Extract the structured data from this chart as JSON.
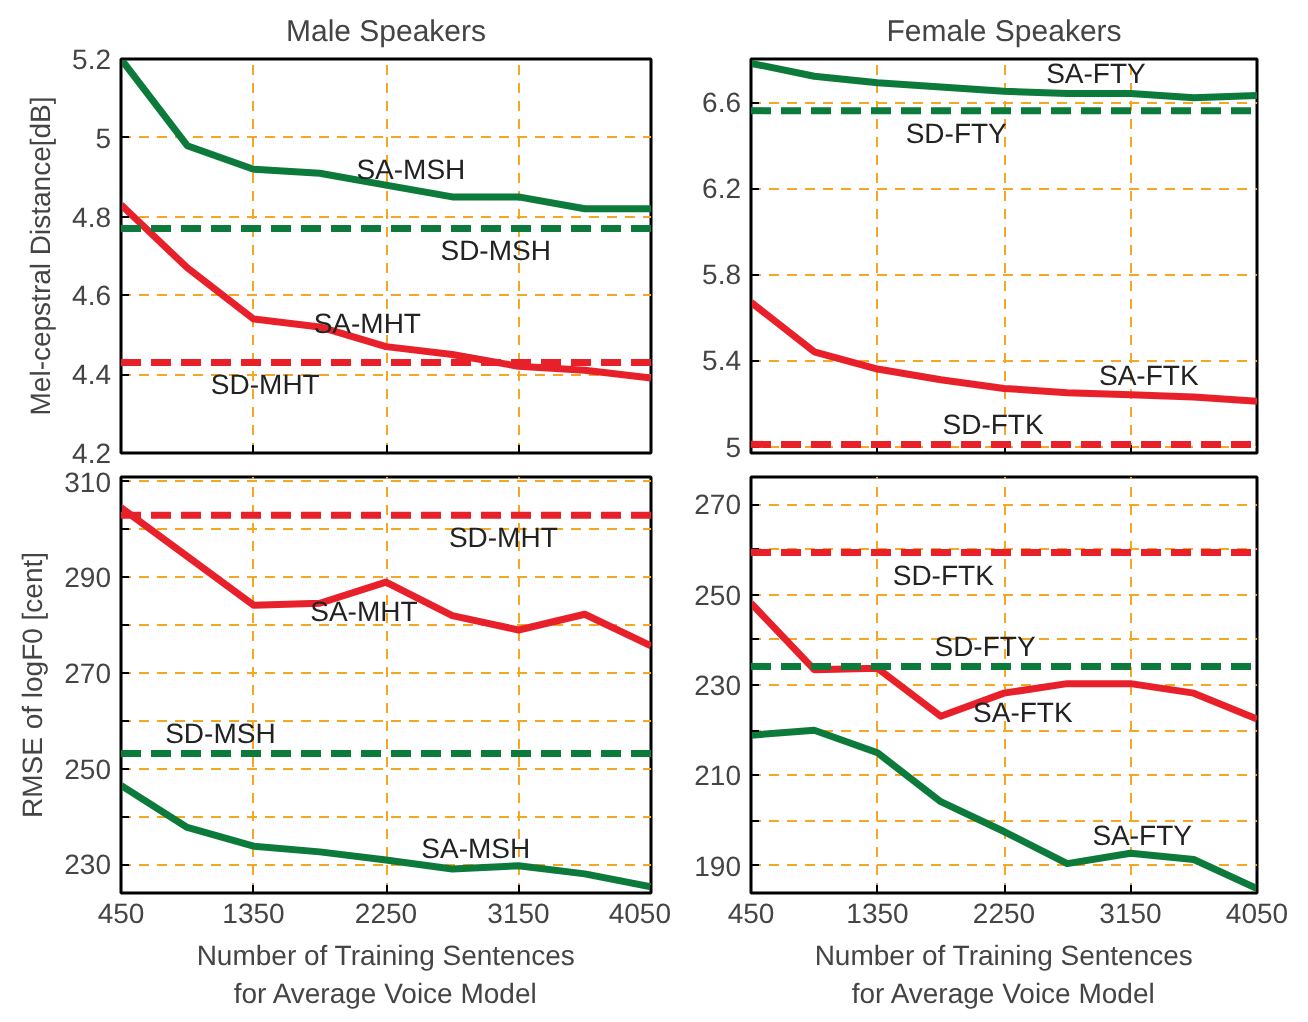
{
  "chart_data": [
    {
      "type": "line",
      "title": "Male Speakers",
      "ylabel": "Mel-cepstral Distance[dB]",
      "x": [
        450,
        900,
        1350,
        1800,
        2250,
        2700,
        3150,
        3600,
        4050
      ],
      "xlim": [
        450,
        4050
      ],
      "xticks": [
        450,
        1350,
        2250,
        3150,
        4050
      ],
      "ylim": [
        4.2,
        5.2
      ],
      "yticks": [
        {
          "value": 4.2,
          "label": "4.2"
        },
        {
          "value": 4.4,
          "label": "4.4"
        },
        {
          "value": 4.6,
          "label": "4.6"
        },
        {
          "value": 4.8,
          "label": "4.8"
        },
        5,
        {
          "value": 5.2,
          "label": "5.2"
        }
      ],
      "tick_labels": "y",
      "grid": true,
      "line_style": "solid",
      "marker": "none",
      "series": [
        {
          "color": "#0b7a3a",
          "values": [
            5.2,
            4.98,
            4.92,
            4.91,
            4.88,
            4.85,
            4.85,
            4.82,
            4.82
          ]
        },
        {
          "color": "#e8202a",
          "values": [
            4.83,
            4.67,
            4.54,
            4.52,
            4.47,
            4.45,
            4.42,
            4.41,
            4.39
          ]
        }
      ],
      "ref_lines": [
        {
          "axis": "y",
          "value": 4.77,
          "color": "#0b7a3a",
          "line_style": "dashed"
        },
        {
          "axis": "y",
          "value": 4.43,
          "color": "#e8202a",
          "line_style": "dashed"
        }
      ],
      "annotations": [
        {
          "text": "SA-MSH",
          "x": 2419,
          "y": 4.87
        },
        {
          "text": "SD-MSH",
          "x": 2995,
          "y": 4.77
        },
        {
          "text": "SA-MHT",
          "x": 2123,
          "y": 4.48
        },
        {
          "text": "SD-MHT",
          "x": 1430,
          "y": 4.43
        }
      ]
    },
    {
      "type": "line",
      "title": "Female Speakers",
      "x": [
        450,
        900,
        1350,
        1800,
        2250,
        2700,
        3150,
        3600,
        4050
      ],
      "xlim": [
        450,
        4050
      ],
      "xticks": [
        450,
        1350,
        2250,
        3150,
        4050
      ],
      "ylim": [
        4.97,
        6.8
      ],
      "yticks": [
        5,
        {
          "value": 5.4,
          "label": "5.4"
        },
        {
          "value": 5.8,
          "label": "5.8"
        },
        {
          "value": 6.2,
          "label": "6.2"
        },
        {
          "value": 6.6,
          "label": "6.6"
        }
      ],
      "tick_labels": "y",
      "grid": true,
      "line_style": "solid",
      "marker": "none",
      "series": [
        {
          "color": "#0b7a3a",
          "values": [
            6.78,
            6.72,
            6.69,
            6.67,
            6.65,
            6.64,
            6.64,
            6.62,
            6.63
          ]
        },
        {
          "color": "#e8202a",
          "values": [
            5.67,
            5.44,
            5.36,
            5.31,
            5.27,
            5.25,
            5.24,
            5.23,
            5.21
          ]
        }
      ],
      "ref_lines": [
        {
          "axis": "y",
          "value": 6.56,
          "color": "#0b7a3a",
          "line_style": "dashed"
        },
        {
          "axis": "y",
          "value": 5.01,
          "color": "#e8202a",
          "line_style": "dashed"
        }
      ],
      "annotations": [
        {
          "text": "SA-FTY",
          "x": 2904,
          "y": 6.64
        },
        {
          "text": "SD-FTY",
          "x": 1910,
          "y": 6.56
        },
        {
          "text": "SA-FTK",
          "x": 3280,
          "y": 5.24
        },
        {
          "text": "SD-FTK",
          "x": 2172,
          "y": 5.01
        }
      ]
    },
    {
      "type": "line",
      "ylabel": "RMSE of logF0 [cent]",
      "xlabel": "Number of Training Sentences\nfor Average Voice Model",
      "x": [
        450,
        900,
        1350,
        1800,
        2250,
        2700,
        3150,
        3600,
        4050
      ],
      "xlim": [
        450,
        4050
      ],
      "xticks": [
        450,
        1350,
        2250,
        3150,
        4050
      ],
      "ylim": [
        224,
        311
      ],
      "yticks": [
        230,
        {
          "value": 240,
          "label": null
        },
        250,
        {
          "value": 260,
          "label": null
        },
        270,
        {
          "value": 280,
          "label": null
        },
        290,
        {
          "value": 300,
          "label": null
        },
        310
      ],
      "grid": true,
      "line_style": "solid",
      "marker": "none",
      "series": [
        {
          "color": "#e8202a",
          "values": [
            304.6,
            294.4,
            284.2,
            284.6,
            289,
            282,
            279,
            282.3,
            275.7
          ]
        },
        {
          "color": "#0b7a3a",
          "values": [
            246.5,
            237.7,
            233.8,
            232.6,
            230.9,
            229,
            229.7,
            228,
            225.3
          ]
        }
      ],
      "ref_lines": [
        {
          "axis": "y",
          "value": 303,
          "color": "#e8202a",
          "line_style": "dashed"
        },
        {
          "axis": "y",
          "value": 253.2,
          "color": "#0b7a3a",
          "line_style": "dashed"
        }
      ],
      "annotations": [
        {
          "text": "SD-MHT",
          "x": 3047,
          "y": 303
        },
        {
          "text": "SA-MHT",
          "x": 2100,
          "y": 287.5
        },
        {
          "text": "SD-MSH",
          "x": 1125,
          "y": 253.2
        },
        {
          "text": "SA-MSH",
          "x": 2860,
          "y": 229.2
        }
      ]
    },
    {
      "type": "line",
      "xlabel": "Number of Training Sentences\nfor Average Voice Model",
      "x": [
        450,
        900,
        1350,
        1800,
        2250,
        2700,
        3150,
        3600,
        4050
      ],
      "xlim": [
        450,
        4050
      ],
      "xticks": [
        450,
        1350,
        2250,
        3150,
        4050
      ],
      "ylim": [
        184,
        276
      ],
      "yticks": [
        190,
        {
          "value": 200,
          "label": null
        },
        210,
        {
          "value": 220,
          "label": null
        },
        230,
        {
          "value": 240,
          "label": null
        },
        250,
        {
          "value": 260,
          "label": null
        },
        270
      ],
      "grid": true,
      "line_style": "solid",
      "marker": "none",
      "series": [
        {
          "color": "#e8202a",
          "values": [
            248.1,
            233.4,
            233.7,
            223.1,
            228.2,
            230.3,
            230.3,
            228.2,
            222.5
          ]
        },
        {
          "color": "#0b7a3a",
          "values": [
            218.9,
            220,
            215,
            204.2,
            197.6,
            190.5,
            192.8,
            191.4,
            185
          ]
        }
      ],
      "ref_lines": [
        {
          "axis": "y",
          "value": 259.3,
          "color": "#e8202a",
          "line_style": "dashed"
        },
        {
          "axis": "y",
          "value": 234.1,
          "color": "#0b7a3a",
          "line_style": "dashed"
        }
      ],
      "annotations": [
        {
          "text": "SD-FTK",
          "x": 1818,
          "y": 259.3
        },
        {
          "text": "SD-FTY",
          "x": 2115,
          "y": 234.1
        },
        {
          "text": "SA-FTK",
          "x": 2384,
          "y": 228.8
        },
        {
          "text": "SA-FTY",
          "x": 3233,
          "y": 192.5
        }
      ]
    }
  ]
}
